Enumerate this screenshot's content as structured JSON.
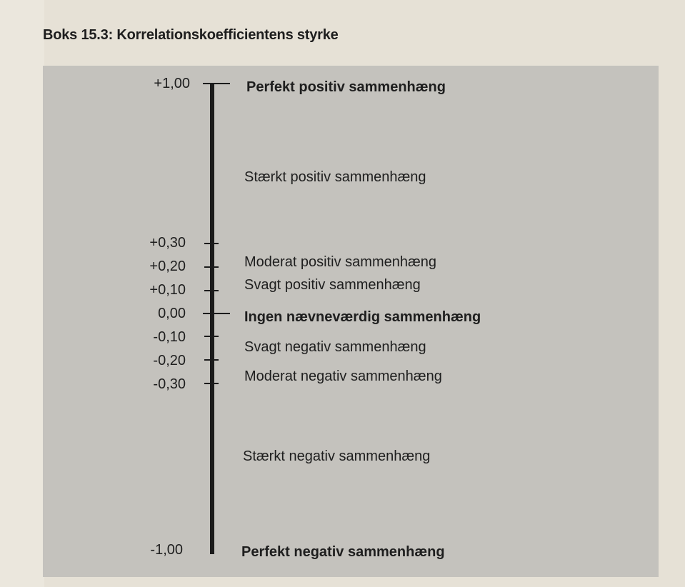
{
  "title": "Boks 15.3: Korrelationskoefficientens styrke",
  "scale_values": [
    "+1,00",
    "+0,30",
    "+0,20",
    "+0,10",
    "0,00",
    "-0,10",
    "-0,20",
    "-0,30",
    "-1,00"
  ],
  "descriptions": [
    "Perfekt positiv sammenhæng",
    "Stærkt positiv sammenhæng",
    "Moderat positiv sammenhæng",
    "Svagt positiv sammenhæng",
    "Ingen nævneværdig sammenhæng",
    "Svagt negativ sammenhæng",
    "Moderat negativ sammenhæng",
    "Stærkt negativ sammenhæng",
    "Perfekt negativ sammenhæng"
  ]
}
